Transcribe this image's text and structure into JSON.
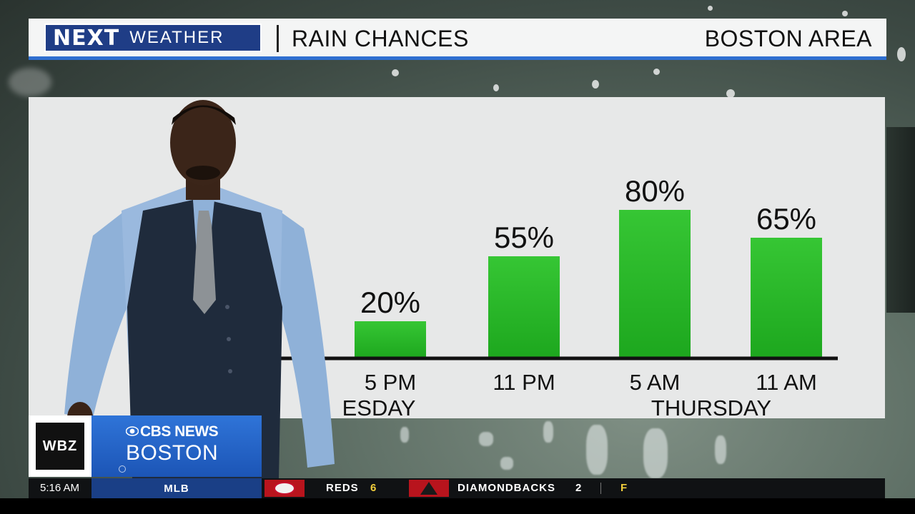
{
  "header": {
    "logo_next": "NEXT",
    "logo_weather": "WEATHER",
    "title": "RAIN CHANCES",
    "location": "BOSTON AREA"
  },
  "chart_data": {
    "type": "bar",
    "categories": [
      "5 PM",
      "11 PM",
      "5 AM",
      "11 AM"
    ],
    "value_labels": [
      "20%",
      "55%",
      "80%",
      "65%"
    ],
    "values": [
      20,
      55,
      80,
      65
    ],
    "day_labels": [
      {
        "text": "ESDAY",
        "under": "5 PM"
      },
      {
        "text": "THURSDAY",
        "under": "5 AM-11 AM"
      }
    ],
    "ylim": [
      0,
      100
    ],
    "bar_color": "#2ab82a"
  },
  "lower_third": {
    "station": "WBZ",
    "network": "CBS NEWS",
    "city": "BOSTON"
  },
  "ticker": {
    "time": "5:16 AM",
    "league": "MLB",
    "team1": "REDS",
    "score1": "6",
    "team2": "DIAMONDBACKS",
    "score2": "2",
    "status": "F"
  }
}
